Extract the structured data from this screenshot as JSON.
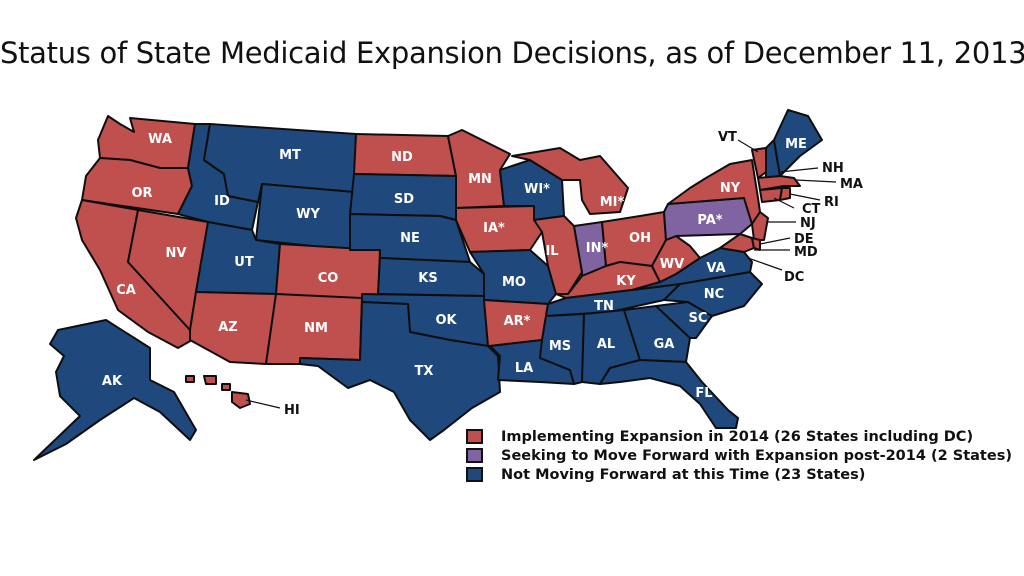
{
  "title": "Status of State Medicaid Expansion Decisions, as of December 11, 2013",
  "colors": {
    "implementing": "#c0504d",
    "seeking": "#8064a2",
    "not_moving": "#1f497d"
  },
  "legend": [
    {
      "key": "implementing",
      "label": "Implementing Expansion in 2014 (26 States including DC)"
    },
    {
      "key": "seeking",
      "label": "Seeking to Move Forward with Expansion post-2014 (2 States)"
    },
    {
      "key": "not_moving",
      "label": "Not Moving Forward at this Time (23 States)"
    }
  ],
  "states": [
    {
      "abbr": "WA",
      "status": "implementing"
    },
    {
      "abbr": "OR",
      "status": "implementing"
    },
    {
      "abbr": "CA",
      "status": "implementing"
    },
    {
      "abbr": "NV",
      "status": "implementing"
    },
    {
      "abbr": "ID",
      "status": "not_moving"
    },
    {
      "abbr": "MT",
      "status": "not_moving"
    },
    {
      "abbr": "WY",
      "status": "not_moving"
    },
    {
      "abbr": "UT",
      "status": "not_moving"
    },
    {
      "abbr": "AZ",
      "status": "implementing"
    },
    {
      "abbr": "CO",
      "status": "implementing"
    },
    {
      "abbr": "NM",
      "status": "implementing"
    },
    {
      "abbr": "ND",
      "status": "implementing"
    },
    {
      "abbr": "SD",
      "status": "not_moving"
    },
    {
      "abbr": "NE",
      "status": "not_moving"
    },
    {
      "abbr": "KS",
      "status": "not_moving"
    },
    {
      "abbr": "OK",
      "status": "not_moving"
    },
    {
      "abbr": "TX",
      "status": "not_moving"
    },
    {
      "abbr": "MN",
      "status": "implementing"
    },
    {
      "abbr": "IA*",
      "status": "implementing"
    },
    {
      "abbr": "MO",
      "status": "not_moving"
    },
    {
      "abbr": "AR*",
      "status": "implementing"
    },
    {
      "abbr": "LA",
      "status": "not_moving"
    },
    {
      "abbr": "WI*",
      "status": "not_moving"
    },
    {
      "abbr": "IL",
      "status": "implementing"
    },
    {
      "abbr": "MI*",
      "status": "implementing"
    },
    {
      "abbr": "IN*",
      "status": "seeking"
    },
    {
      "abbr": "OH",
      "status": "implementing"
    },
    {
      "abbr": "KY",
      "status": "implementing"
    },
    {
      "abbr": "TN",
      "status": "not_moving"
    },
    {
      "abbr": "MS",
      "status": "not_moving"
    },
    {
      "abbr": "AL",
      "status": "not_moving"
    },
    {
      "abbr": "GA",
      "status": "not_moving"
    },
    {
      "abbr": "FL",
      "status": "not_moving"
    },
    {
      "abbr": "SC",
      "status": "not_moving"
    },
    {
      "abbr": "NC",
      "status": "not_moving"
    },
    {
      "abbr": "VA",
      "status": "not_moving"
    },
    {
      "abbr": "WV",
      "status": "implementing"
    },
    {
      "abbr": "PA*",
      "status": "seeking"
    },
    {
      "abbr": "NY",
      "status": "implementing"
    },
    {
      "abbr": "VT",
      "status": "implementing"
    },
    {
      "abbr": "NH",
      "status": "not_moving"
    },
    {
      "abbr": "ME",
      "status": "not_moving"
    },
    {
      "abbr": "MA",
      "status": "implementing"
    },
    {
      "abbr": "RI",
      "status": "implementing"
    },
    {
      "abbr": "CT",
      "status": "implementing"
    },
    {
      "abbr": "NJ",
      "status": "implementing"
    },
    {
      "abbr": "DE",
      "status": "implementing"
    },
    {
      "abbr": "MD",
      "status": "implementing"
    },
    {
      "abbr": "DC",
      "status": "implementing"
    },
    {
      "abbr": "AK",
      "status": "not_moving"
    },
    {
      "abbr": "HI",
      "status": "implementing"
    }
  ]
}
